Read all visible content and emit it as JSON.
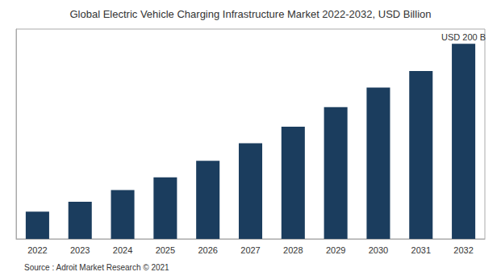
{
  "chart_data": {
    "type": "bar",
    "title": "Global Electric Vehicle Charging Infrastructure Market 2022-2032, USD Billion",
    "categories": [
      "2022",
      "2023",
      "2024",
      "2025",
      "2026",
      "2027",
      "2028",
      "2029",
      "2030",
      "2031",
      "2032"
    ],
    "values": [
      28,
      38,
      50,
      63,
      80,
      98,
      115,
      135,
      155,
      172,
      200
    ],
    "color": "#1b3d5e",
    "annotation": "USD 200 B",
    "source": "Source : Adroit Market Research © 2021",
    "ylim": [
      0,
      215
    ],
    "grid": false,
    "tick_labels": "x"
  }
}
